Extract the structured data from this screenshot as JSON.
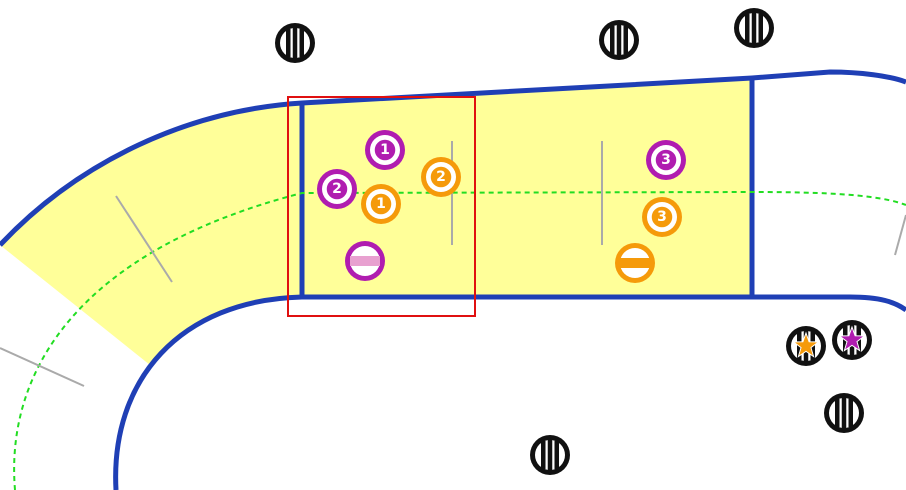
{
  "colors": {
    "track_border": "#1f3fb5",
    "zone_fill": "#ffff99",
    "center_line": "#22dd22",
    "tick": "#aaaaaa",
    "highlight": "#e01010",
    "team_purple": "#b01cb0",
    "team_orange": "#f59a0a",
    "marker_dark": "#111111",
    "lozenge_pink": "#e8a0d0",
    "lozenge_white": "#ffffff"
  },
  "skaters": [
    {
      "team": "purple",
      "label": "1"
    },
    {
      "team": "purple",
      "label": "2"
    },
    {
      "team": "purple",
      "label": "3"
    },
    {
      "team": "orange",
      "label": "1"
    },
    {
      "team": "orange",
      "label": "2"
    },
    {
      "team": "orange",
      "label": "3"
    }
  ],
  "pivots": [
    {
      "team": "purple",
      "icon": "pivot-stripe-icon"
    },
    {
      "team": "orange",
      "icon": "pivot-stripe-icon"
    }
  ],
  "officials": [
    {
      "icon": "referee-stripes-icon"
    },
    {
      "icon": "referee-stripes-icon"
    },
    {
      "icon": "referee-stripes-icon"
    },
    {
      "icon": "referee-stripes-icon"
    },
    {
      "icon": "referee-stripes-icon"
    }
  ],
  "jammers": [
    {
      "team": "orange",
      "icon": "star-icon"
    },
    {
      "team": "purple",
      "icon": "star-icon"
    }
  ]
}
